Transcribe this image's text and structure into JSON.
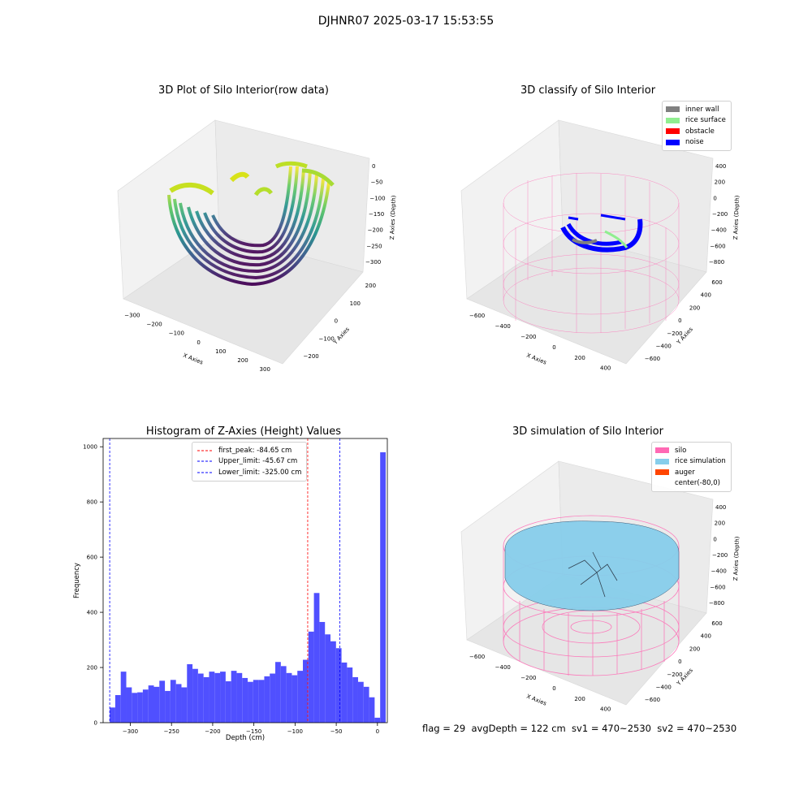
{
  "suptitle": "DJHNR07 2025-03-17 15:53:55",
  "colors": {
    "inner_wall": "#808080",
    "rice_surface": "#90ee90",
    "obstacle": "#ff0000",
    "noise": "#0000ff",
    "silo": "#ff69b4",
    "rice_simulation": "#87ceeb",
    "auger": "#ff4500",
    "hist_bar": "#5050ff",
    "first_peak_line": "#ff0000",
    "limit_line": "#0000ff"
  },
  "plot1": {
    "title": "3D Plot of Silo Interior(row data)",
    "xlabel": "X Axies",
    "ylabel": "Y Axies",
    "zlabel": "Z Axies (Depth)",
    "xticks": [
      "−300",
      "−200",
      "−100",
      "0",
      "100",
      "200",
      "300"
    ],
    "yticks": [
      "−200",
      "−100",
      "0",
      "100",
      "200"
    ],
    "zticks": [
      "0",
      "−50",
      "−100",
      "−150",
      "−200",
      "−250",
      "−300"
    ]
  },
  "plot2": {
    "title": "3D classify of Silo Interior",
    "xlabel": "X Axies",
    "ylabel": "Y Axies",
    "zlabel": "Z Axies (Depth)",
    "xticks": [
      "−600",
      "−400",
      "−200",
      "0",
      "200",
      "400"
    ],
    "yticks": [
      "−600",
      "−400",
      "−200",
      "0",
      "200",
      "400",
      "600"
    ],
    "zticks": [
      "400",
      "200",
      "0",
      "−200",
      "−400",
      "−600",
      "−800"
    ],
    "legend": [
      "inner wall",
      "rice surface",
      "obstacle",
      "noise"
    ]
  },
  "plot3": {
    "title": "3D simulation of Silo Interior",
    "xlabel": "X Axies",
    "ylabel": "Y Axies",
    "zlabel": "Z Axies (Depth)",
    "xticks": [
      "−600",
      "−400",
      "−200",
      "0",
      "200",
      "400"
    ],
    "yticks": [
      "−600",
      "−400",
      "−200",
      "0",
      "200",
      "400",
      "600"
    ],
    "zticks": [
      "400",
      "200",
      "0",
      "−200",
      "−400",
      "−600",
      "−800"
    ],
    "legend": [
      "silo",
      "rice simulation",
      "auger",
      "center(-80,0)"
    ]
  },
  "chart_data": {
    "type": "bar",
    "title": "Histogram of Z-Axies (Height) Values",
    "xlabel": "Depth (cm)",
    "ylabel": "Frequency",
    "xlim": [
      -333,
      12
    ],
    "ylim": [
      0,
      1030
    ],
    "bin_start": -325,
    "bin_width": 6.7,
    "values": [
      55,
      100,
      185,
      128,
      108,
      110,
      120,
      135,
      130,
      152,
      115,
      155,
      140,
      128,
      212,
      195,
      178,
      165,
      185,
      180,
      185,
      150,
      188,
      180,
      162,
      148,
      155,
      155,
      168,
      178,
      220,
      205,
      180,
      172,
      188,
      228,
      330,
      470,
      365,
      320,
      295,
      270,
      218,
      200,
      165,
      148,
      130,
      92,
      18,
      980
    ],
    "xticks": [
      -300,
      -250,
      -200,
      -150,
      -100,
      -50,
      0
    ],
    "xtick_labels": [
      "−300",
      "−250",
      "−200",
      "−150",
      "−100",
      "−50",
      "0"
    ],
    "yticks": [
      0,
      200,
      400,
      600,
      800,
      1000
    ],
    "ytick_labels": [
      "0",
      "200",
      "400",
      "600",
      "800",
      "1000"
    ],
    "vlines": [
      {
        "x": -84.65,
        "label": "first_peak: -84.65 cm",
        "color": "#ff0000"
      },
      {
        "x": -45.67,
        "label": "Upper_limit: -45.67 cm",
        "color": "#0000ff"
      },
      {
        "x": -325.0,
        "label": "Lower_limit: -325.00 cm",
        "color": "#0000ff"
      }
    ],
    "grid": false,
    "legend_position": "top-center"
  },
  "footer": "flag = 29  avgDepth = 122 cm  sv1 = 470~2530  sv2 = 470~2530"
}
